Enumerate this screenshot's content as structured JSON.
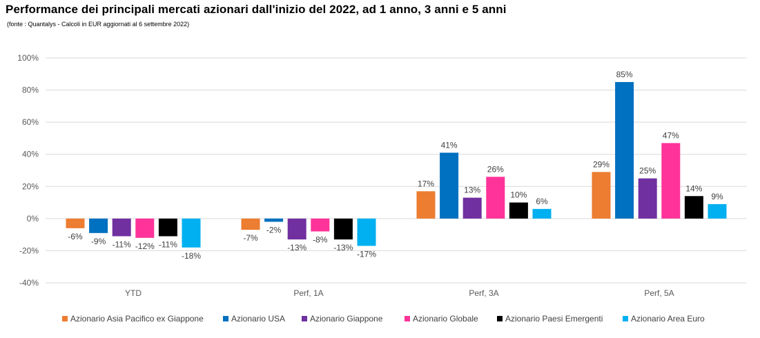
{
  "title": "Performance dei principali mercati azionari dall'inizio del 2022, ad 1 anno, 3 anni e 5 anni",
  "subtitle": "(fonte : Quantalys - Calcoli in EUR aggiornati al 6 settembre 2022)",
  "chart_data": {
    "type": "bar",
    "categories": [
      "YTD",
      "Perf, 1A",
      "Perf, 3A",
      "Perf, 5A"
    ],
    "ylim": [
      -40,
      100
    ],
    "yticks": [
      -40,
      -20,
      0,
      20,
      40,
      60,
      80,
      100
    ],
    "ytick_labels": [
      "-40%",
      "-20%",
      "0%",
      "20%",
      "40%",
      "60%",
      "80%",
      "100%"
    ],
    "grid": true,
    "legend_position": "bottom",
    "series": [
      {
        "name": "Azionario Asia Pacifico ex Giappone",
        "color": "#ED7D31",
        "values": [
          -6,
          -7,
          17,
          29
        ],
        "labels": [
          "-6%",
          "-7%",
          "17%",
          "29%"
        ]
      },
      {
        "name": "Azionario USA",
        "color": "#0070C0",
        "values": [
          -9,
          -2,
          41,
          85
        ],
        "labels": [
          "-9%",
          "-2%",
          "41%",
          "85%"
        ]
      },
      {
        "name": "Azionario Giappone",
        "color": "#7030A0",
        "values": [
          -11,
          -13,
          13,
          25
        ],
        "labels": [
          "-11%",
          "-13%",
          "13%",
          "25%"
        ]
      },
      {
        "name": "Azionario Globale",
        "color": "#FF3399",
        "values": [
          -12,
          -8,
          26,
          47
        ],
        "labels": [
          "-12%",
          "-8%",
          "26%",
          "47%"
        ]
      },
      {
        "name": "Azionario Paesi Emergenti",
        "color": "#000000",
        "values": [
          -11,
          -13,
          10,
          14
        ],
        "labels": [
          "-11%",
          "-13%",
          "10%",
          "14%"
        ]
      },
      {
        "name": "Azionario Area Euro",
        "color": "#00B0F0",
        "values": [
          -18,
          -17,
          6,
          9
        ],
        "labels": [
          "-18%",
          "-17%",
          "6%",
          "9%"
        ]
      }
    ]
  }
}
